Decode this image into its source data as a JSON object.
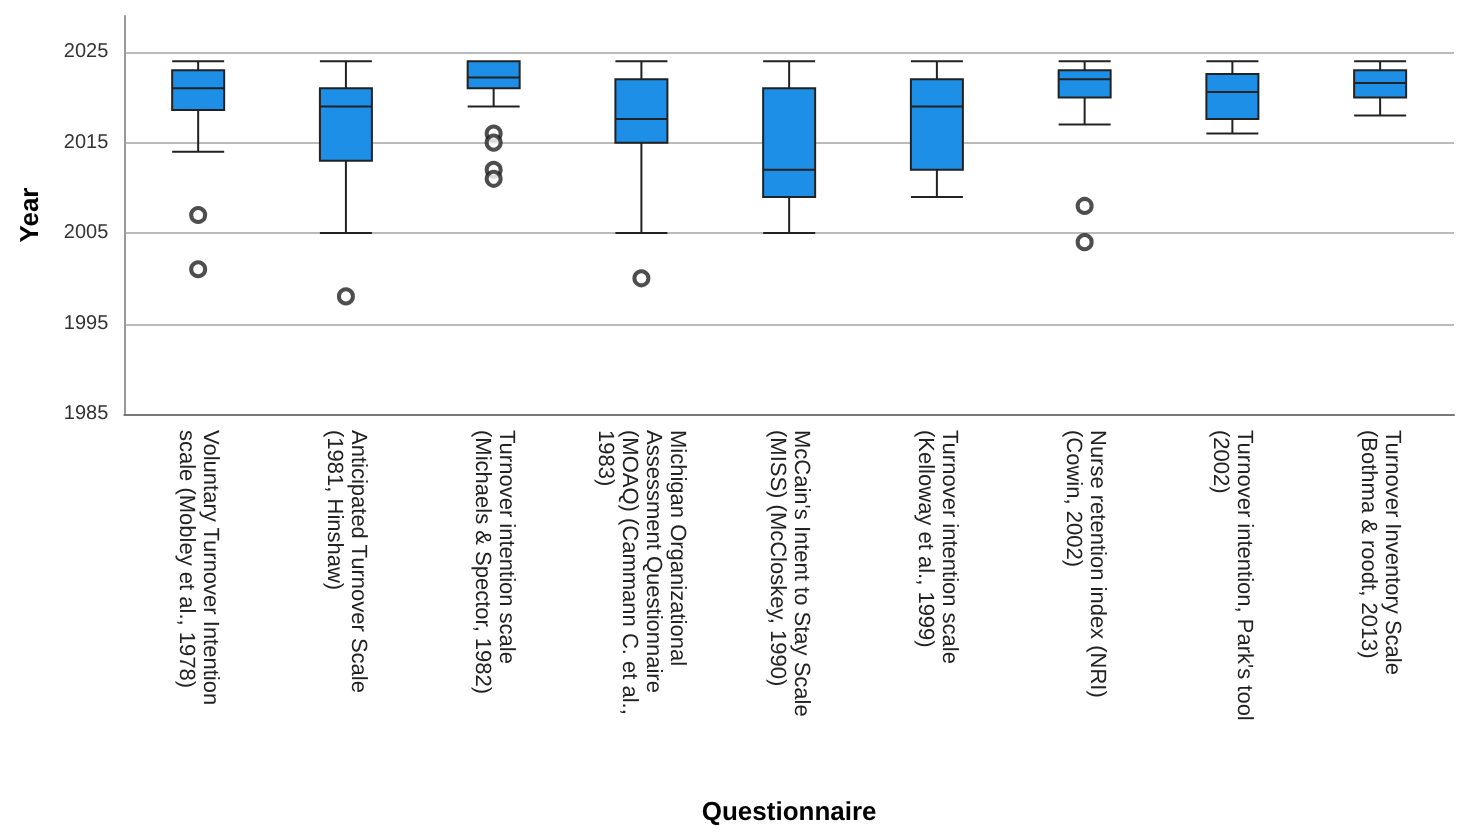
{
  "chart_data": {
    "type": "box",
    "xlabel": "Questionnaire",
    "ylabel": "Year",
    "categories": [
      "Voluntary Turnover Intention scale (Mobley et al., 1978)",
      "Anticipated Turnover Scale (1981, Hinshaw)",
      "Turnover intention scale (Michaels & Spector, 1982)",
      "Michigan Organizational Assessment Questionnaire (MOAQ) (Cammann C. et al., 1983)",
      "McCain's Intent to Stay Scale (MISS) (McCloskey, 1990)",
      "Turnover intention scale (Kelloway et al., 1999)",
      "Nurse retention index (NRI) (Cowin, 2002)",
      "Turnover intention, Park's tool (2002)",
      "Turnover Inventory Scale (Bothma & roodt, 2013)"
    ],
    "color": "#1e8fe6",
    "boxes": [
      {
        "low": 2014,
        "q1": 2018.6,
        "median": 2021,
        "q3": 2023,
        "high": 2024,
        "outliers": [
          2007,
          2001
        ]
      },
      {
        "low": 2005,
        "q1": 2013,
        "median": 2019,
        "q3": 2021,
        "high": 2024,
        "outliers": [
          1998
        ]
      },
      {
        "low": 2019,
        "q1": 2021,
        "median": 2022.2,
        "q3": 2024,
        "high": 2024,
        "outliers": [
          2016,
          2015,
          2012,
          2011
        ]
      },
      {
        "low": 2005,
        "q1": 2015,
        "median": 2017.6,
        "q3": 2022,
        "high": 2024,
        "outliers": [
          2000
        ]
      },
      {
        "low": 2005,
        "q1": 2009,
        "median": 2012,
        "q3": 2021,
        "high": 2024
      },
      {
        "low": 2009,
        "q1": 2012,
        "median": 2019,
        "q3": 2022,
        "high": 2024
      },
      {
        "low": 2017,
        "q1": 2020,
        "median": 2022,
        "q3": 2023,
        "high": 2024,
        "outliers": [
          2008,
          2004
        ]
      },
      {
        "low": 2016,
        "q1": 2017.6,
        "median": 2020.6,
        "q3": 2022.6,
        "high": 2024
      },
      {
        "low": 2018,
        "q1": 2020,
        "median": 2021.6,
        "q3": 2023,
        "high": 2024
      }
    ],
    "ylim": [
      1985,
      2029
    ],
    "yticks": [
      1985,
      1995,
      2005,
      2015,
      2025
    ],
    "grid": "y"
  }
}
